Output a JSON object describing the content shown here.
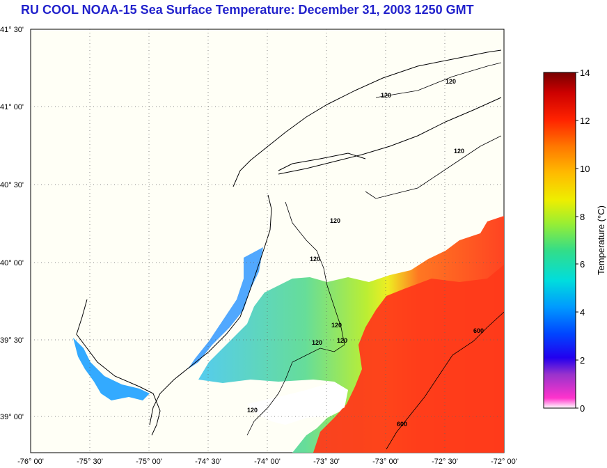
{
  "title": "RU COOL  NOAA-15  Sea Surface Temperature:  December 31, 2003 1250 GMT",
  "map": {
    "lat_labels": [
      "41° 30'",
      "41° 00'",
      "40° 30'",
      "40° 00'",
      "39° 30'",
      "39° 00'"
    ],
    "lon_labels": [
      "-76° 00'",
      "-75° 30'",
      "-75° 00'",
      "-74° 30'",
      "-74° 00'",
      "-73° 30'",
      "-73° 00'",
      "-72° 30'",
      "-72° 00'"
    ],
    "contour_labels": [
      "120",
      "120",
      "120",
      "120",
      "120",
      "120",
      "120",
      "600",
      "600",
      "120",
      "120"
    ]
  },
  "colorbar": {
    "label": "Temperature (°C)",
    "ticks": [
      "14",
      "12",
      "10",
      "8",
      "6",
      "4",
      "2",
      "0"
    ],
    "range": [
      0,
      14
    ]
  },
  "colors": {
    "title": "#2222cc",
    "land": "#fffff6",
    "no_data": "#ffffff"
  }
}
